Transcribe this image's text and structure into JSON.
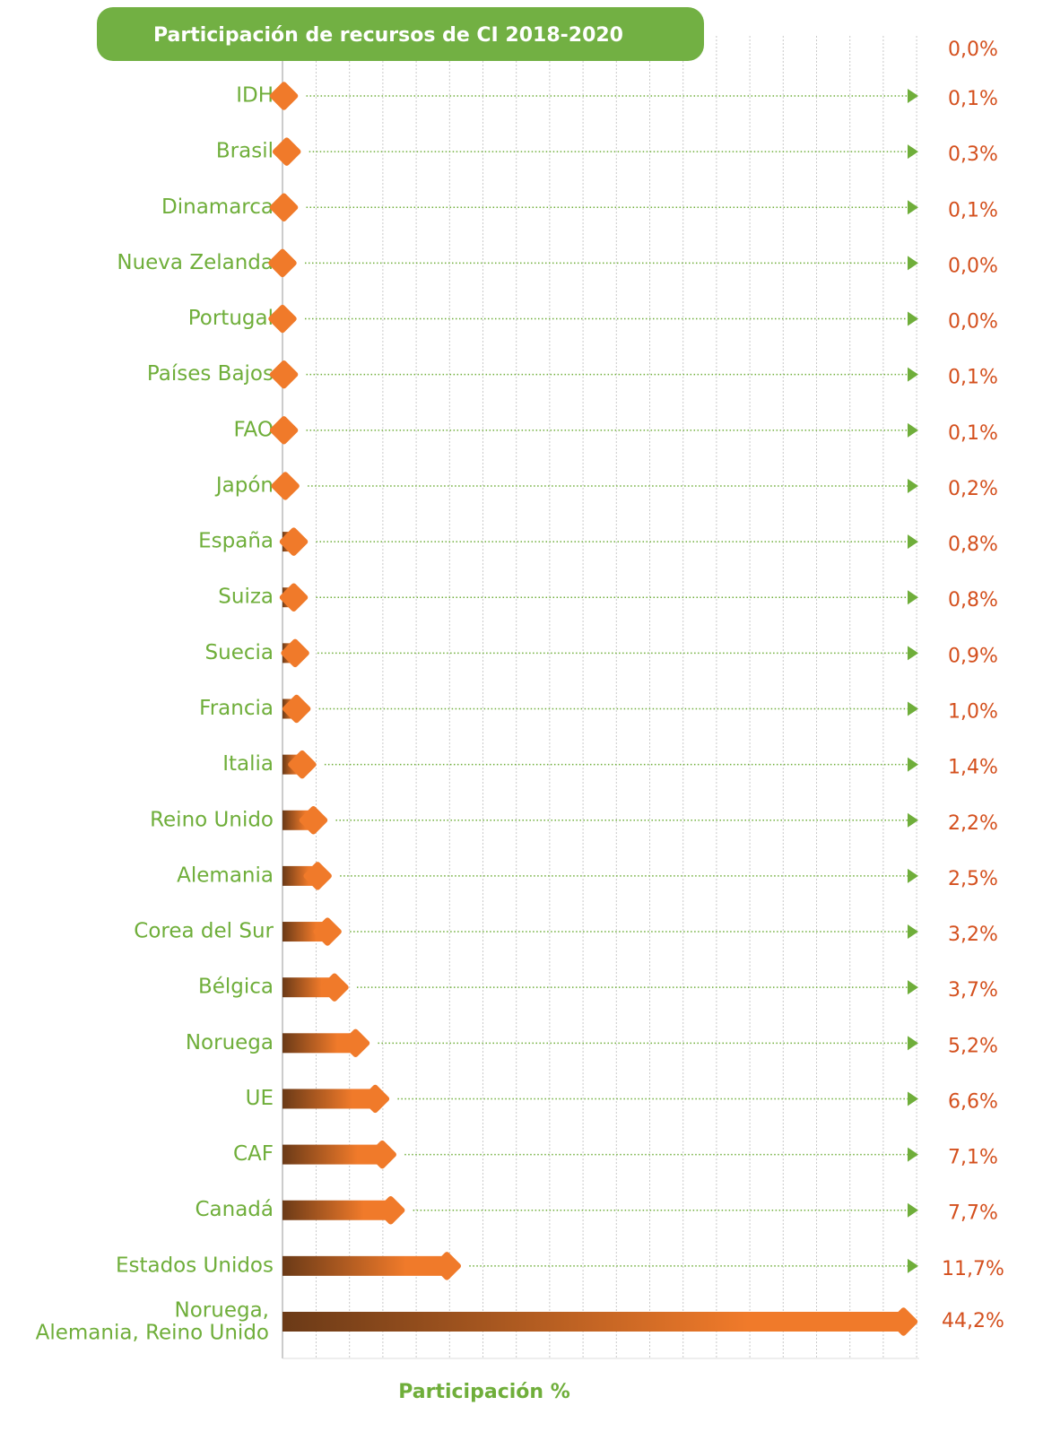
{
  "chart_data": {
    "type": "bar",
    "orientation": "horizontal",
    "title": "Participación de recursos de CI 2018-2020",
    "xlabel": "Participación %",
    "annotation": "0,0%",
    "categories": [
      "IDH",
      "Brasil",
      "Dinamarca",
      "Nueva Zelanda",
      "Portugal",
      "Países Bajos",
      "FAO",
      "Japón",
      "España",
      "Suiza",
      "Suecia",
      "Francia",
      "Italia",
      "Reino Unido",
      "Alemania",
      "Corea del Sur",
      "Bélgica",
      "Noruega",
      "UE",
      "CAF",
      "Canadá",
      "Estados Unidos",
      "Noruega,\nAlemania, Reino Unido"
    ],
    "values": [
      0.1,
      0.3,
      0.1,
      0.0,
      0.0,
      0.1,
      0.1,
      0.2,
      0.8,
      0.8,
      0.9,
      1.0,
      1.4,
      2.2,
      2.5,
      3.2,
      3.7,
      5.2,
      6.6,
      7.1,
      7.7,
      11.7,
      44.2
    ],
    "value_labels": [
      "0,1%",
      "0,3%",
      "0,1%",
      "0,0%",
      "0,0%",
      "0,1%",
      "0,1%",
      "0,2%",
      "0,8%",
      "0,8%",
      "0,9%",
      "1,0%",
      "1,4%",
      "2,2%",
      "2,5%",
      "3,2%",
      "3,7%",
      "5,2%",
      "6,6%",
      "7,1%",
      "7,7%",
      "11,7%",
      "44,2%"
    ],
    "xlim": [
      0,
      45
    ],
    "color": "#f07a2a",
    "marker_color": "#f07a2a",
    "label_color": "#6fae3a"
  }
}
